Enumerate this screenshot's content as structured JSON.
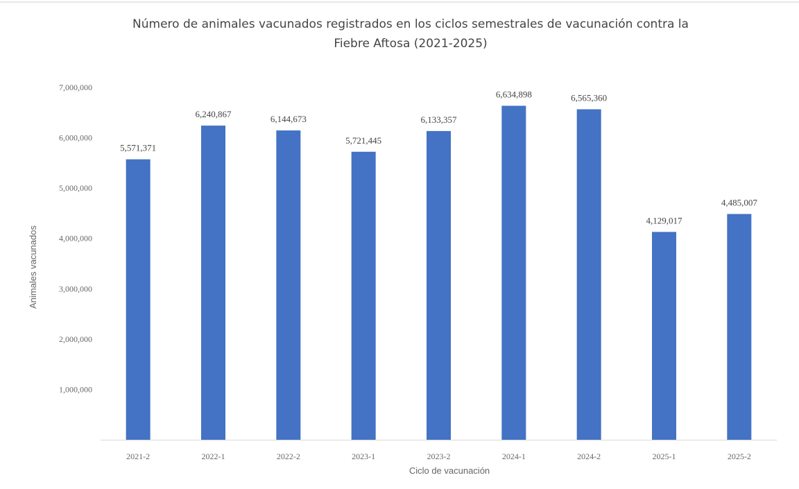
{
  "chart_data": {
    "type": "bar",
    "title_lines": [
      "Número de animales vacunados registrados en los ciclos semestrales de vacunación contra la",
      "Fiebre Aftosa (2021-2025)"
    ],
    "xlabel": "Ciclo de vacunación",
    "ylabel": "Animales vacunados",
    "ylim": [
      0,
      7000000
    ],
    "y_ticks": [
      1000000,
      2000000,
      3000000,
      4000000,
      5000000,
      6000000,
      7000000
    ],
    "y_tick_labels": [
      "1,000,000",
      "2,000,000",
      "3,000,000",
      "4,000,000",
      "5,000,000",
      "6,000,000",
      "7,000,000"
    ],
    "grid": false,
    "bar_color": "#4472C4",
    "categories": [
      "2021-2",
      "2022-1",
      "2022-2",
      "2023-1",
      "2023-2",
      "2024-1",
      "2024-2",
      "2025-1",
      "2025-2"
    ],
    "values": [
      5571371,
      6240867,
      6144673,
      5721445,
      6133357,
      6634898,
      6565360,
      4129017,
      4485007
    ],
    "data_labels": [
      "5,571,371",
      "6,240,867",
      "6,144,673",
      "5,721,445",
      "6,133,357",
      "6,634,898",
      "6,565,360",
      "4,129,017",
      "4,485,007"
    ]
  }
}
